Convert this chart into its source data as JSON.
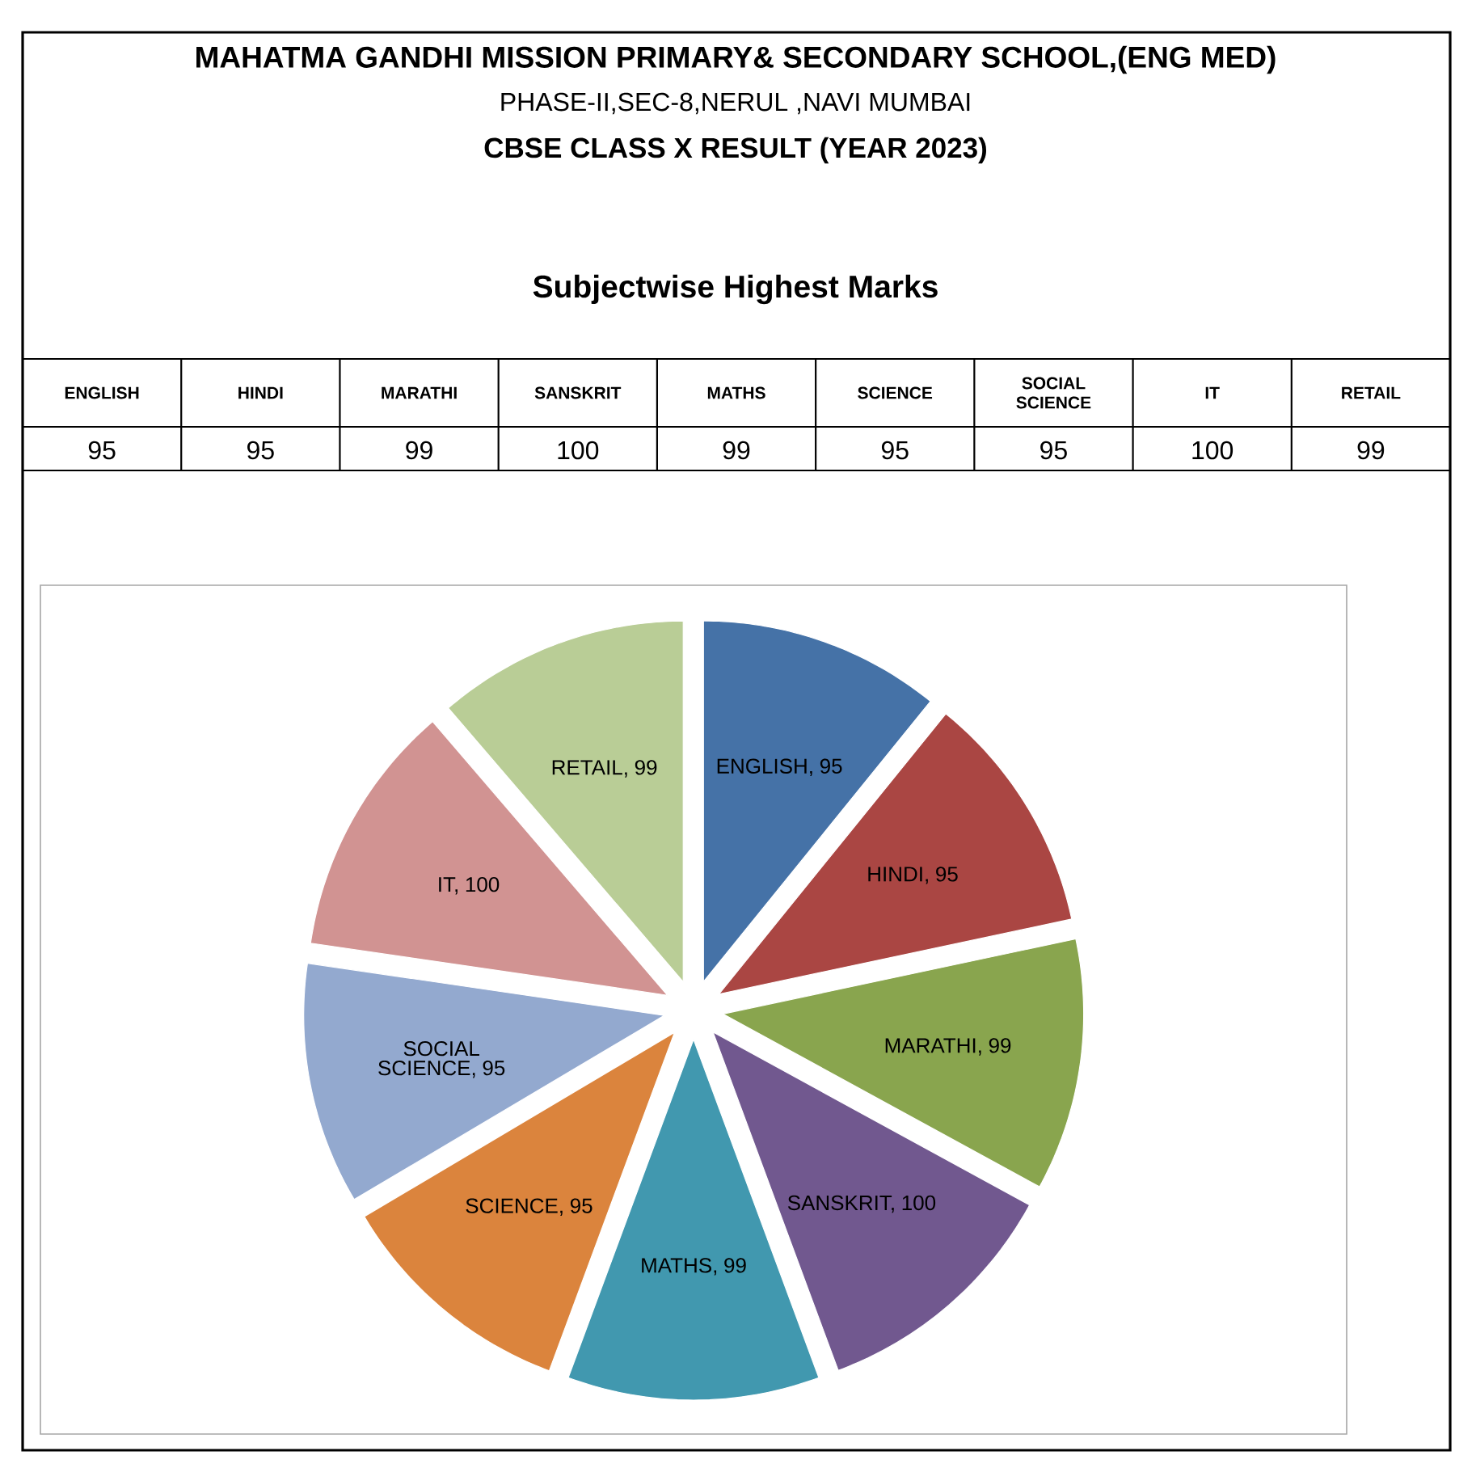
{
  "chart_data": [
    {
      "type": "other",
      "title": "Subjectwise Highest Marks",
      "annotations": [
        "MAHATMA GANDHI MISSION PRIMARY& SECONDARY SCHOOL,(ENG  MED)",
        "PHASE-II,SEC-8,NERUL ,NAVI MUMBAI",
        "CBSE CLASS X  RESULT (YEAR 2023)"
      ],
      "categories": [
        "ENGLISH",
        "HINDI",
        "MARATHI",
        "SANSKRIT",
        "MATHS",
        "SCIENCE",
        "SOCIAL SCIENCE",
        "IT",
        "RETAIL"
      ],
      "values": [
        95,
        95,
        99,
        100,
        99,
        95,
        95,
        100,
        99
      ],
      "data_labels": true
    },
    {
      "type": "pie",
      "categories": [
        null,
        null,
        null,
        null,
        null,
        null,
        null,
        null,
        null
      ],
      "values": [
        95,
        95,
        99,
        100,
        99,
        95,
        95,
        100,
        99
      ],
      "value_labels": [
        "ENGLISH, 95",
        "HINDI, 95",
        "MARATHI, 99",
        "SANSKRIT, 100",
        "MATHS, 99",
        "SCIENCE, 95",
        "SOCIAL SCIENCE, 95",
        "IT, 100",
        "RETAIL, 99"
      ],
      "colors": [
        "#4572a7",
        "#aa4643",
        "#89a54e",
        "#71588f",
        "#4198af",
        "#db843d",
        "#93a9cf",
        "#d19392",
        "#b9cd96"
      ]
    }
  ]
}
